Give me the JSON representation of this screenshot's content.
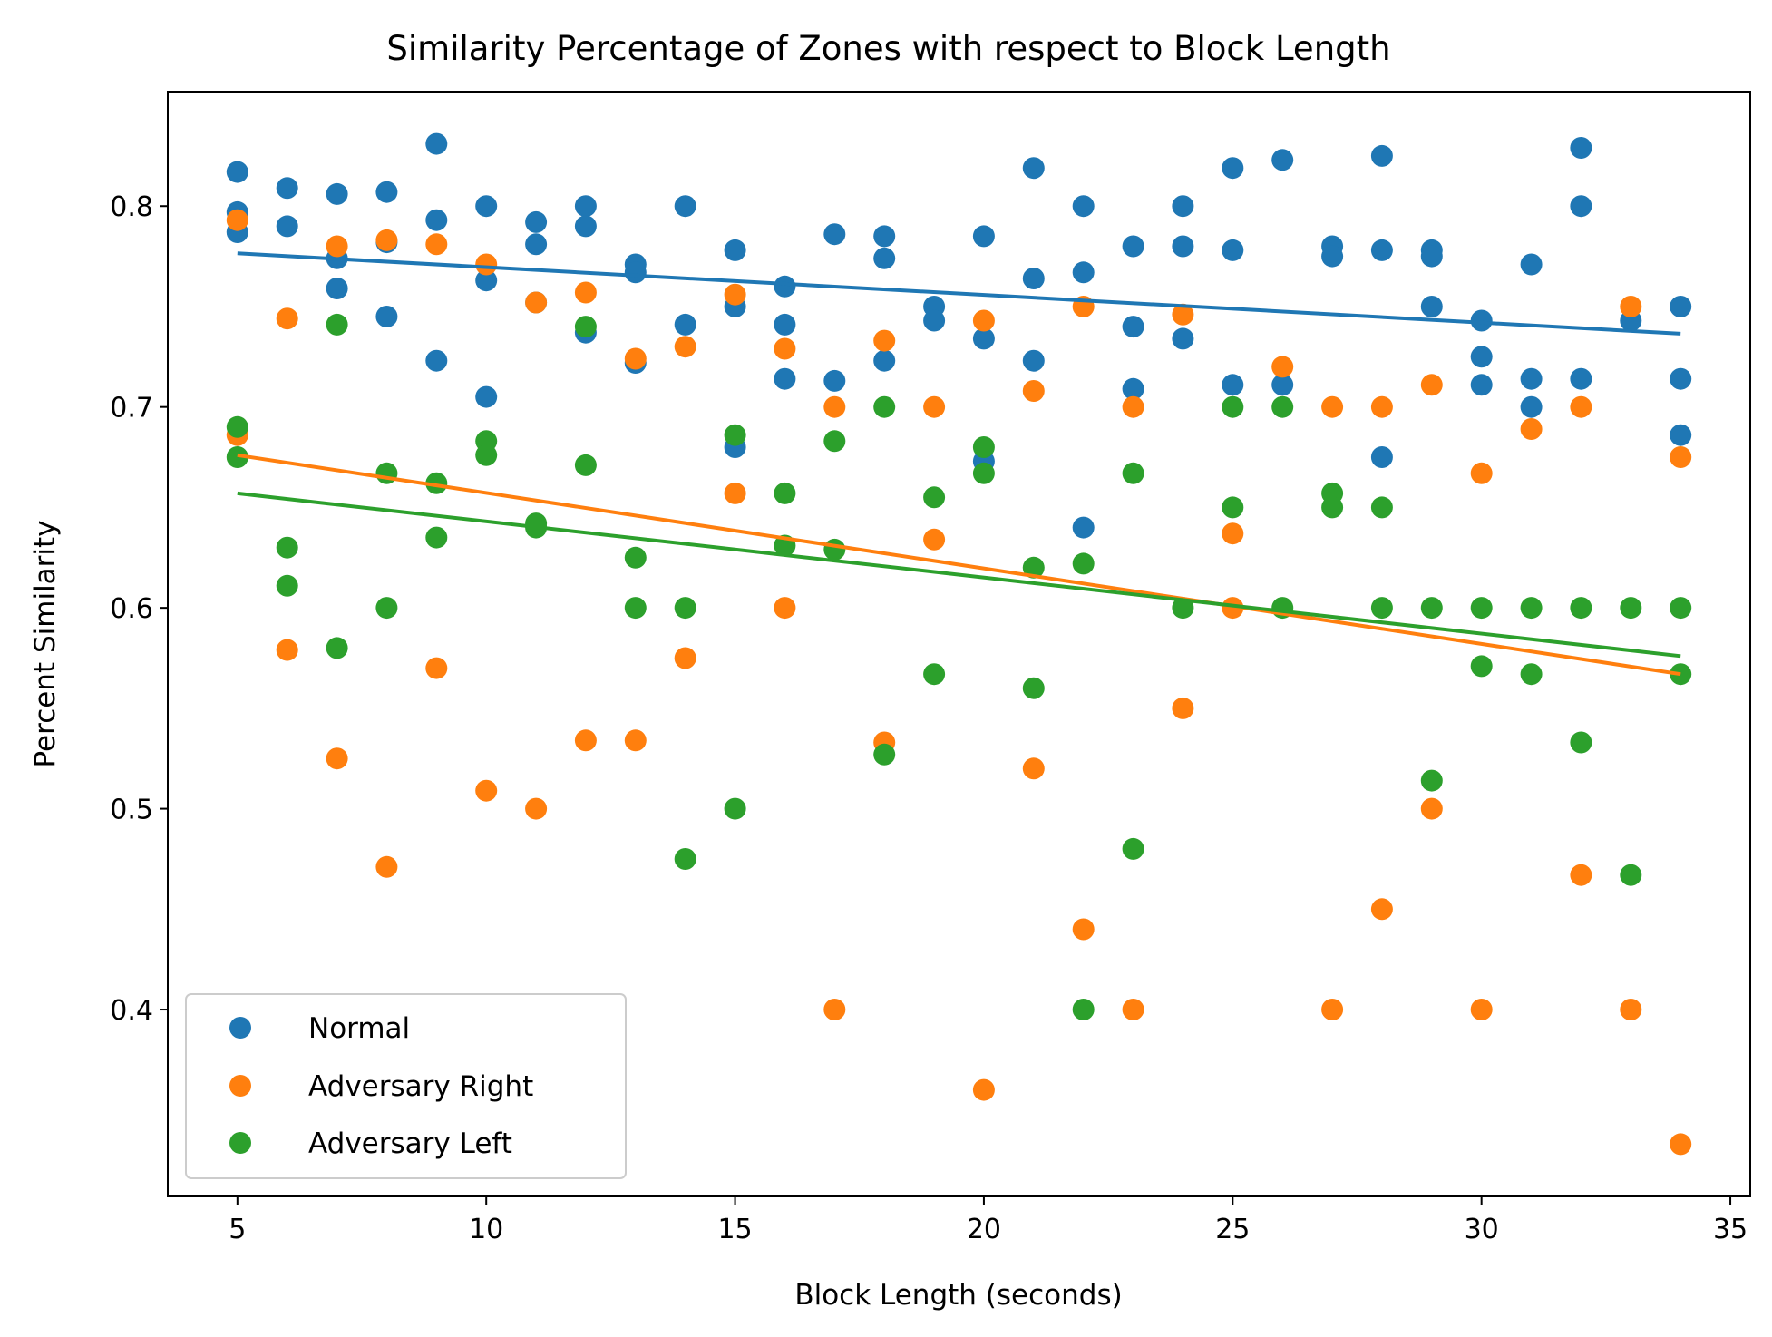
{
  "chart_data": {
    "type": "scatter",
    "title": "Similarity Percentage of Zones with respect to Block Length",
    "xlabel": "Block Length (seconds)",
    "ylabel": "Percent Similarity",
    "xlim": [
      3.6,
      35.4
    ],
    "ylim": [
      0.307,
      0.857
    ],
    "xticks": [
      5,
      10,
      15,
      20,
      25,
      30,
      35
    ],
    "yticks": [
      0.4,
      0.5,
      0.6,
      0.7,
      0.8
    ],
    "grid": false,
    "legend_position": "lower-left",
    "series": [
      {
        "name": "Normal",
        "color": "#1f77b4",
        "points": [
          [
            5,
            0.817
          ],
          [
            5,
            0.797
          ],
          [
            5,
            0.787
          ],
          [
            6,
            0.809
          ],
          [
            6,
            0.79
          ],
          [
            7,
            0.806
          ],
          [
            7,
            0.774
          ],
          [
            7,
            0.759
          ],
          [
            8,
            0.807
          ],
          [
            8,
            0.782
          ],
          [
            8,
            0.745
          ],
          [
            9,
            0.831
          ],
          [
            9,
            0.793
          ],
          [
            9,
            0.723
          ],
          [
            10,
            0.8
          ],
          [
            10,
            0.763
          ],
          [
            10,
            0.705
          ],
          [
            11,
            0.792
          ],
          [
            11,
            0.781
          ],
          [
            11,
            0.752
          ],
          [
            12,
            0.8
          ],
          [
            12,
            0.79
          ],
          [
            12,
            0.737
          ],
          [
            13,
            0.771
          ],
          [
            13,
            0.767
          ],
          [
            13,
            0.722
          ],
          [
            14,
            0.8
          ],
          [
            14,
            0.741
          ],
          [
            15,
            0.778
          ],
          [
            15,
            0.75
          ],
          [
            15,
            0.68
          ],
          [
            16,
            0.76
          ],
          [
            16,
            0.741
          ],
          [
            16,
            0.714
          ],
          [
            17,
            0.786
          ],
          [
            17,
            0.713
          ],
          [
            18,
            0.785
          ],
          [
            18,
            0.774
          ],
          [
            18,
            0.723
          ],
          [
            19,
            0.75
          ],
          [
            19,
            0.743
          ],
          [
            20,
            0.785
          ],
          [
            20,
            0.734
          ],
          [
            20,
            0.673
          ],
          [
            21,
            0.819
          ],
          [
            21,
            0.764
          ],
          [
            21,
            0.723
          ],
          [
            22,
            0.8
          ],
          [
            22,
            0.767
          ],
          [
            22,
            0.64
          ],
          [
            23,
            0.78
          ],
          [
            23,
            0.74
          ],
          [
            23,
            0.709
          ],
          [
            24,
            0.8
          ],
          [
            24,
            0.78
          ],
          [
            24,
            0.734
          ],
          [
            25,
            0.819
          ],
          [
            25,
            0.778
          ],
          [
            25,
            0.711
          ],
          [
            26,
            0.823
          ],
          [
            26,
            0.711
          ],
          [
            27,
            0.78
          ],
          [
            27,
            0.775
          ],
          [
            28,
            0.825
          ],
          [
            28,
            0.778
          ],
          [
            28,
            0.675
          ],
          [
            29,
            0.778
          ],
          [
            29,
            0.775
          ],
          [
            29,
            0.75
          ],
          [
            30,
            0.743
          ],
          [
            30,
            0.725
          ],
          [
            30,
            0.711
          ],
          [
            31,
            0.771
          ],
          [
            31,
            0.714
          ],
          [
            31,
            0.7
          ],
          [
            32,
            0.829
          ],
          [
            32,
            0.8
          ],
          [
            32,
            0.714
          ],
          [
            33,
            0.743
          ],
          [
            34,
            0.75
          ],
          [
            34,
            0.714
          ],
          [
            34,
            0.686
          ]
        ],
        "trend": [
          [
            5,
            0.7765
          ],
          [
            34,
            0.7365
          ]
        ]
      },
      {
        "name": "Adversary Right",
        "color": "#ff7f0e",
        "points": [
          [
            5,
            0.793
          ],
          [
            5,
            0.686
          ],
          [
            6,
            0.744
          ],
          [
            6,
            0.579
          ],
          [
            7,
            0.78
          ],
          [
            7,
            0.525
          ],
          [
            8,
            0.783
          ],
          [
            8,
            0.471
          ],
          [
            9,
            0.781
          ],
          [
            9,
            0.57
          ],
          [
            10,
            0.771
          ],
          [
            10,
            0.509
          ],
          [
            11,
            0.752
          ],
          [
            11,
            0.5
          ],
          [
            12,
            0.757
          ],
          [
            12,
            0.534
          ],
          [
            13,
            0.724
          ],
          [
            13,
            0.534
          ],
          [
            14,
            0.73
          ],
          [
            14,
            0.575
          ],
          [
            15,
            0.756
          ],
          [
            15,
            0.657
          ],
          [
            16,
            0.729
          ],
          [
            16,
            0.6
          ],
          [
            17,
            0.7
          ],
          [
            17,
            0.4
          ],
          [
            18,
            0.733
          ],
          [
            18,
            0.533
          ],
          [
            19,
            0.7
          ],
          [
            19,
            0.634
          ],
          [
            20,
            0.743
          ],
          [
            20,
            0.36
          ],
          [
            21,
            0.708
          ],
          [
            21,
            0.52
          ],
          [
            22,
            0.75
          ],
          [
            22,
            0.44
          ],
          [
            23,
            0.7
          ],
          [
            23,
            0.4
          ],
          [
            24,
            0.746
          ],
          [
            24,
            0.55
          ],
          [
            25,
            0.637
          ],
          [
            25,
            0.6
          ],
          [
            26,
            0.72
          ],
          [
            27,
            0.7
          ],
          [
            27,
            0.4
          ],
          [
            28,
            0.7
          ],
          [
            28,
            0.45
          ],
          [
            29,
            0.711
          ],
          [
            29,
            0.5
          ],
          [
            30,
            0.667
          ],
          [
            30,
            0.4
          ],
          [
            31,
            0.689
          ],
          [
            32,
            0.7
          ],
          [
            32,
            0.467
          ],
          [
            33,
            0.75
          ],
          [
            33,
            0.4
          ],
          [
            34,
            0.675
          ],
          [
            34,
            0.333
          ]
        ],
        "trend": [
          [
            5,
            0.676
          ],
          [
            34,
            0.567
          ]
        ]
      },
      {
        "name": "Adversary Left",
        "color": "#2ca02c",
        "points": [
          [
            5,
            0.69
          ],
          [
            5,
            0.675
          ],
          [
            6,
            0.63
          ],
          [
            6,
            0.611
          ],
          [
            7,
            0.741
          ],
          [
            7,
            0.58
          ],
          [
            8,
            0.667
          ],
          [
            8,
            0.6
          ],
          [
            9,
            0.662
          ],
          [
            9,
            0.635
          ],
          [
            10,
            0.683
          ],
          [
            10,
            0.676
          ],
          [
            11,
            0.642
          ],
          [
            11,
            0.64
          ],
          [
            12,
            0.74
          ],
          [
            12,
            0.671
          ],
          [
            13,
            0.625
          ],
          [
            13,
            0.6
          ],
          [
            14,
            0.6
          ],
          [
            14,
            0.475
          ],
          [
            15,
            0.686
          ],
          [
            15,
            0.5
          ],
          [
            16,
            0.657
          ],
          [
            16,
            0.631
          ],
          [
            17,
            0.683
          ],
          [
            17,
            0.629
          ],
          [
            18,
            0.7
          ],
          [
            18,
            0.527
          ],
          [
            19,
            0.655
          ],
          [
            19,
            0.567
          ],
          [
            20,
            0.68
          ],
          [
            20,
            0.667
          ],
          [
            21,
            0.62
          ],
          [
            21,
            0.56
          ],
          [
            22,
            0.622
          ],
          [
            22,
            0.4
          ],
          [
            23,
            0.667
          ],
          [
            23,
            0.48
          ],
          [
            24,
            0.6
          ],
          [
            25,
            0.7
          ],
          [
            25,
            0.65
          ],
          [
            26,
            0.7
          ],
          [
            26,
            0.6
          ],
          [
            27,
            0.657
          ],
          [
            27,
            0.65
          ],
          [
            28,
            0.65
          ],
          [
            28,
            0.6
          ],
          [
            29,
            0.6
          ],
          [
            29,
            0.514
          ],
          [
            30,
            0.6
          ],
          [
            30,
            0.571
          ],
          [
            31,
            0.6
          ],
          [
            31,
            0.567
          ],
          [
            32,
            0.6
          ],
          [
            32,
            0.533
          ],
          [
            33,
            0.6
          ],
          [
            33,
            0.467
          ],
          [
            34,
            0.6
          ],
          [
            34,
            0.567
          ]
        ],
        "trend": [
          [
            5,
            0.657
          ],
          [
            34,
            0.576
          ]
        ]
      }
    ]
  }
}
